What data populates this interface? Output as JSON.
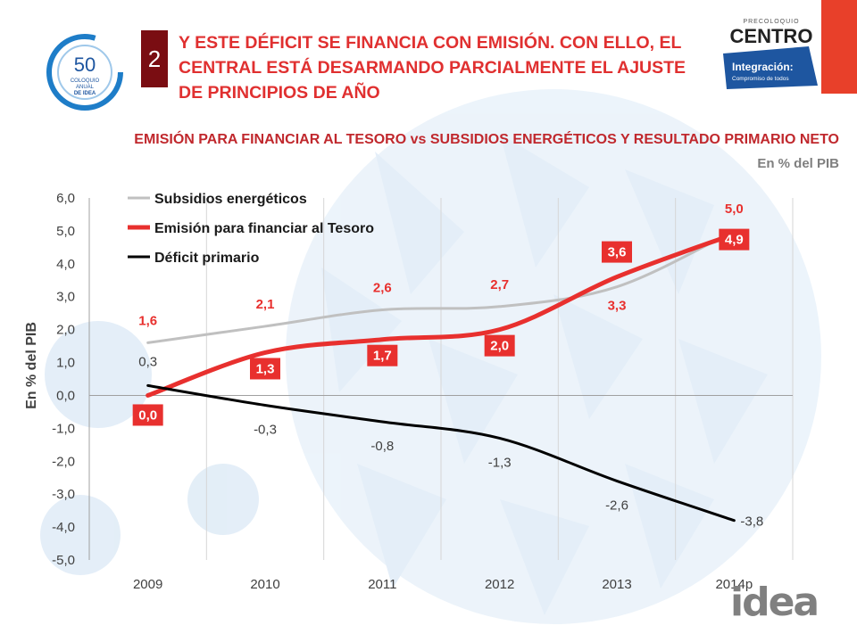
{
  "slide": {
    "number": "2",
    "headline": "Y ESTE DÉFICIT SE FINANCIA CON EMISIÓN. CON ELLO, EL CENTRAL ESTÁ DESARMANDO PARCIALMENTE EL AJUSTE DE PRINCIPIOS DE AÑO"
  },
  "logos": {
    "left": {
      "number": "50",
      "line1": "COLOQUIO",
      "line2": "ANUAL",
      "line3": "DE IDEA"
    },
    "right": {
      "top": "PRECOLOQUIO",
      "brand": "CENTRO",
      "tag": "Integración:",
      "sub": "Compromiso de todos"
    },
    "bottom": "idea"
  },
  "colors": {
    "accent_red": "#e8302e",
    "headline": "#e03030",
    "dark_red": "#7a0d12",
    "gray_line": "#c0c0c0",
    "black_line": "#000000",
    "brand_blue": "#1e56a0",
    "brand_orange": "#e8402a"
  },
  "chart_data": {
    "type": "line",
    "title": "EMISIÓN PARA FINANCIAR AL TESORO vs SUBSIDIOS ENERGÉTICOS Y RESULTADO PRIMARIO NETO",
    "subtitle": "En % del PIB",
    "ylabel": "En % del PIB",
    "xlabel": "",
    "categories": [
      "2009",
      "2010",
      "2011",
      "2012",
      "2013",
      "2014p"
    ],
    "ylim": [
      -5,
      6
    ],
    "yticks": [
      "6,0",
      "5,0",
      "4,0",
      "3,0",
      "2,0",
      "1,0",
      "0,0",
      "-1,0",
      "-2,0",
      "-3,0",
      "-4,0",
      "-5,0"
    ],
    "grid": "vertical",
    "legend_position": "top-left",
    "series": [
      {
        "name": "Subsidios energéticos",
        "color": "#c0c0c0",
        "values": [
          1.6,
          2.1,
          2.6,
          2.7,
          3.3,
          5.0
        ],
        "labels": [
          "1,6",
          "2,1",
          "2,6",
          "2,7",
          "3,3",
          "5,0"
        ]
      },
      {
        "name": "Emisión para financiar al Tesoro",
        "color": "#e8302e",
        "values": [
          0.0,
          1.3,
          1.7,
          2.0,
          3.6,
          4.9
        ],
        "labels": [
          "0,0",
          "1,3",
          "1,7",
          "2,0",
          "3,6",
          "4,9"
        ]
      },
      {
        "name": "Déficit primario",
        "color": "#000000",
        "values": [
          0.3,
          -0.3,
          -0.8,
          -1.3,
          -2.6,
          -3.8
        ],
        "labels": [
          "0,3",
          "-0,3",
          "-0,8",
          "-1,3",
          "-2,6",
          "-3,8"
        ]
      }
    ]
  }
}
